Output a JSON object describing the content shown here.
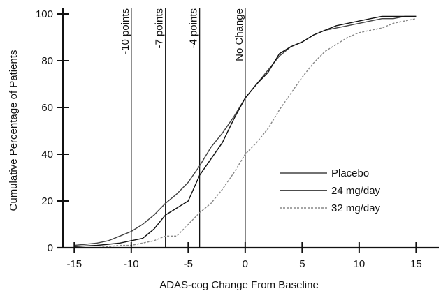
{
  "chart_data": {
    "type": "line",
    "xlabel": "ADAS-cog Change From Baseline",
    "ylabel": "Cumulative Percentage of Patients",
    "xlim": [
      -16,
      17
    ],
    "ylim": [
      0,
      100
    ],
    "xticks": [
      -15,
      -10,
      -5,
      0,
      5,
      10,
      15
    ],
    "yticks": [
      0,
      20,
      40,
      60,
      80,
      100
    ],
    "grid": false,
    "legend_position": "lower-right",
    "reference_lines": [
      {
        "x": -10,
        "label": "-10 points"
      },
      {
        "x": -7,
        "label": "-7 points"
      },
      {
        "x": -4,
        "label": "-4 points"
      },
      {
        "x": 0,
        "label": "No Change"
      }
    ],
    "series": [
      {
        "name": "Placebo",
        "color": "#444444",
        "dash": "",
        "x": [
          -15,
          -14,
          -13,
          -12,
          -11,
          -10,
          -9,
          -8,
          -7,
          -6,
          -5,
          -4,
          -3,
          -2,
          -1,
          0,
          1,
          2,
          3,
          4,
          5,
          6,
          7,
          8,
          9,
          10,
          11,
          12,
          13,
          14,
          15
        ],
        "y": [
          1,
          1.5,
          2,
          3,
          5,
          7,
          10,
          14,
          19,
          23,
          28,
          35,
          43,
          49,
          56,
          64,
          70,
          76,
          82,
          86,
          88,
          91,
          93,
          94,
          95,
          96,
          97,
          98,
          98,
          99,
          99
        ]
      },
      {
        "name": "24 mg/day",
        "color": "#111111",
        "dash": "",
        "x": [
          -15,
          -14,
          -13,
          -12,
          -11,
          -10,
          -9,
          -8,
          -7,
          -6,
          -5,
          -4,
          -3,
          -2,
          -1,
          0,
          1,
          2,
          3,
          4,
          5,
          6,
          7,
          8,
          9,
          10,
          11,
          12,
          13,
          14,
          15
        ],
        "y": [
          0.5,
          0.8,
          1,
          1.5,
          2,
          3,
          4,
          8,
          14,
          17,
          20,
          31,
          38,
          45,
          55,
          64,
          70,
          75,
          83,
          86,
          88,
          91,
          93,
          95,
          96,
          97,
          98,
          99,
          99,
          99,
          99
        ]
      },
      {
        "name": "32 mg/day",
        "color": "#888888",
        "dash": "3,2",
        "x": [
          -15,
          -14,
          -13,
          -12,
          -11,
          -10,
          -9,
          -8,
          -7,
          -6,
          -5,
          -4,
          -3,
          -2,
          -1,
          0,
          1,
          2,
          3,
          4,
          5,
          6,
          7,
          8,
          9,
          10,
          11,
          12,
          13,
          14,
          15
        ],
        "y": [
          0,
          0,
          0,
          0.5,
          1,
          1,
          2,
          3,
          5,
          5,
          10,
          15,
          19,
          25,
          32,
          40,
          45,
          51,
          59,
          66,
          73,
          79,
          84,
          87,
          90,
          92,
          93,
          94,
          96,
          97,
          98
        ]
      }
    ]
  }
}
